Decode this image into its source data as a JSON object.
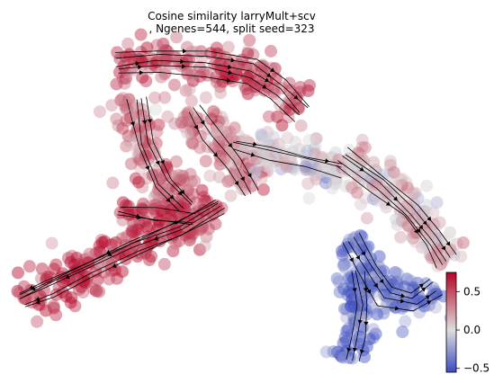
{
  "chart_data": {
    "type": "scatter",
    "title": "Cosine similarity larryMult+scv",
    "subtitle": ", Ngenes=544, split seed=323",
    "axes": "off",
    "overlay": "velocity streamlines with arrowheads",
    "colormap": {
      "name": "coolwarm",
      "low_color": "#3b4cc0",
      "mid_color": "#dddddd",
      "high_color": "#b40426",
      "vmin": -0.55,
      "vmax": 0.75
    },
    "colorbar": {
      "ticks": [
        0.5,
        0.0,
        -0.5
      ],
      "tick_labels": [
        "0.5",
        "0.0",
        "−0.5"
      ],
      "placement": "right"
    },
    "regions": [
      {
        "name": "top-left arm",
        "value": 0.55
      },
      {
        "name": "upper band",
        "value": 0.4
      },
      {
        "name": "central junction",
        "value": 0.05
      },
      {
        "name": "right descending arm",
        "value": 0.15
      },
      {
        "name": "lower-right branch",
        "value": -0.45
      },
      {
        "name": "lower-left arm",
        "value": 0.6
      }
    ]
  }
}
